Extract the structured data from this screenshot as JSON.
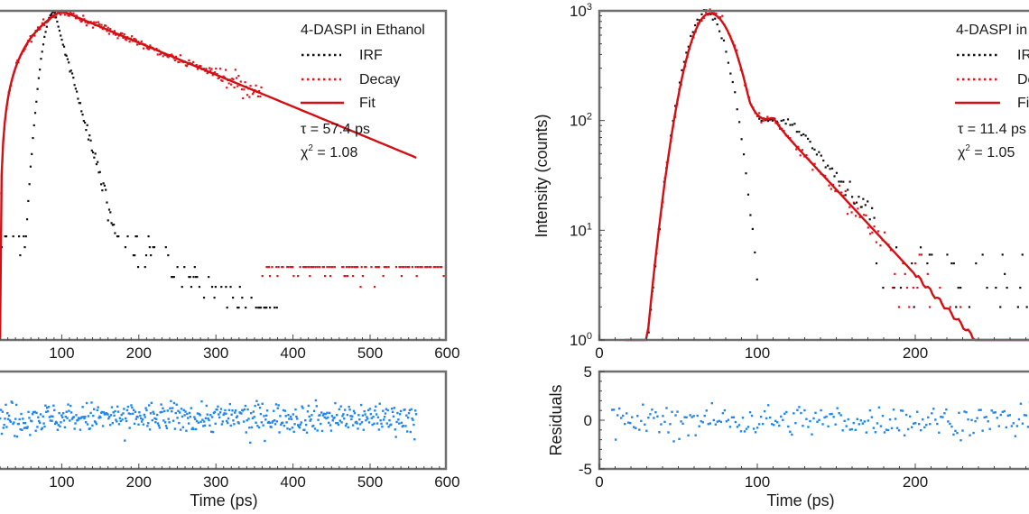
{
  "figure": {
    "colors": {
      "irf": "#111111",
      "decay": "#e0141e",
      "fit": "#d40f14",
      "residuals": "#1e88f0",
      "frame": "#6e6e6e"
    }
  },
  "chart_data": [
    {
      "panel": "left-main",
      "type": "scatter",
      "title": "",
      "xlabel": "",
      "ylabel": "",
      "xlim": [
        0,
        600
      ],
      "yscale": "log",
      "ylim": [
        1,
        1000
      ],
      "x_ticks": [
        "100",
        "200",
        "300",
        "400",
        "500",
        "600"
      ],
      "legend": {
        "placement": "top-right",
        "title": "4-DASPI in Ethanol",
        "entries": [
          {
            "label": "IRF",
            "style": "dotted",
            "color": "#111111"
          },
          {
            "label": "Decay",
            "style": "dotted",
            "color": "#e0141e"
          },
          {
            "label": "Fit",
            "style": "solid",
            "color": "#d40f14"
          }
        ],
        "annotations": [
          "τ = 57.4 ps",
          "χ² = 1.08"
        ]
      },
      "series": [
        {
          "name": "IRF",
          "kind": "points",
          "peak_time_ps": 90,
          "peak_counts": 1000,
          "rise_tau_ps": 9,
          "decay_tau_ps": 16,
          "x_end_ps": 380
        },
        {
          "name": "Decay",
          "kind": "points",
          "peak_time_ps": 100,
          "peak_counts": 1000,
          "decay_tau_ps": 57.4,
          "x_end_ps": 600
        },
        {
          "name": "Fit",
          "kind": "line",
          "peak_time_ps": 100,
          "peak_counts": 1000,
          "decay_tau_ps": 57.4,
          "x_end_ps": 560
        }
      ],
      "tau": "57.4 ps",
      "chi_squared": 1.08
    },
    {
      "panel": "left-residuals",
      "type": "scatter",
      "xlabel": "Time (ps)",
      "ylabel": "",
      "xlim": [
        0,
        600
      ],
      "ylim": [
        -5,
        5
      ],
      "x_ticks": [
        "100",
        "200",
        "300",
        "400",
        "500",
        "600"
      ],
      "series": [
        {
          "name": "Residuals",
          "x_start_ps": 20,
          "x_end_ps": 560,
          "spread": 1.1,
          "offset": 0.3
        }
      ]
    },
    {
      "panel": "right-main",
      "type": "scatter",
      "xlabel": "",
      "ylabel": "Intensity (counts)",
      "xlim": [
        0,
        300
      ],
      "yscale": "log",
      "ylim": [
        1,
        1000
      ],
      "x_ticks": [
        "0",
        "100",
        "200"
      ],
      "y_ticks": [
        "10^0",
        "10^1",
        "10^2",
        "10^3"
      ],
      "legend": {
        "placement": "top-right",
        "title": "4-DASPI in",
        "entries": [
          {
            "label": "IRF",
            "style": "dotted",
            "color": "#111111"
          },
          {
            "label": "Decay",
            "style": "dotted",
            "color": "#e0141e"
          },
          {
            "label": "Fit",
            "style": "solid",
            "color": "#d40f14"
          }
        ],
        "annotations": [
          "τ = 11.4 ps",
          "χ² = 1.05"
        ]
      },
      "series": [
        {
          "name": "IRF",
          "kind": "points",
          "peak_time_ps": 68,
          "peak_counts": 950,
          "x_end_ps": 300
        },
        {
          "name": "Decay",
          "kind": "points",
          "peak_time_ps": 70,
          "peak_counts": 950,
          "x_end_ps": 300
        },
        {
          "name": "Fit",
          "kind": "line",
          "peak_time_ps": 70,
          "peak_counts": 950,
          "decay_tau_ps": 11.4,
          "x_end_ps": 300
        }
      ],
      "tau": "11.4 ps",
      "chi_squared": 1.05
    },
    {
      "panel": "right-residuals",
      "type": "scatter",
      "xlabel": "Time (ps)",
      "ylabel": "Residuals",
      "xlim": [
        0,
        300
      ],
      "ylim": [
        -5,
        5
      ],
      "x_ticks": [
        "0",
        "100",
        "200"
      ],
      "y_ticks": [
        "5",
        "0",
        "-5"
      ],
      "series": [
        {
          "name": "Residuals",
          "x_start_ps": 8,
          "x_end_ps": 300,
          "spread": 1.1,
          "offset": 0.0
        }
      ]
    }
  ],
  "labels": {
    "left_legend_title": "4-DASPI in Ethanol",
    "right_legend_title": "4-DASPI in",
    "irf": "IRF",
    "decay": "Decay",
    "fit": "Fit",
    "left_tau": "τ = 57.4 ps",
    "left_chi": "χ",
    "left_chi_rest": " = 1.08",
    "right_tau": "τ = 11.4 ps",
    "right_chi": "χ",
    "right_chi_rest": " = 1.05",
    "chi_sup": "2",
    "x_axis_label": "Time (ps)",
    "y_axis_label_intensity": "Intensity (counts)",
    "y_axis_label_residuals": "Residuals",
    "left_x_ticks": [
      "100",
      "200",
      "300",
      "400",
      "500",
      "600"
    ],
    "right_x_ticks": [
      "0",
      "100",
      "200"
    ],
    "right_log_base": "10",
    "right_log_exps": [
      "0",
      "1",
      "2",
      "3"
    ],
    "right_res_ticks": [
      "5",
      "0",
      "-5"
    ]
  }
}
